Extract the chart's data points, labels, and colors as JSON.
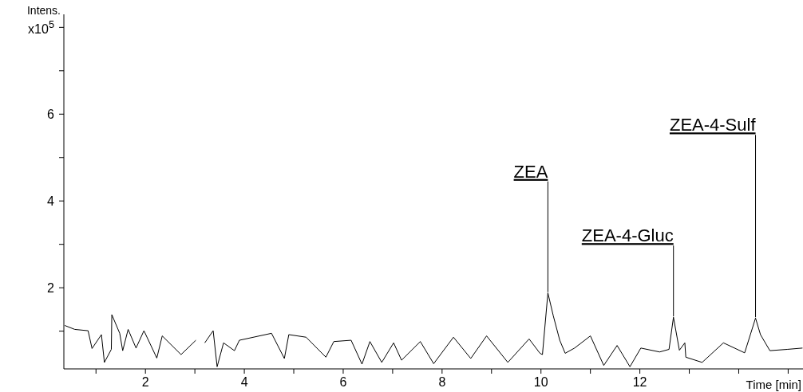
{
  "chart_data": {
    "type": "line",
    "xlabel": "Time [min]",
    "ylabel": "Intens. x10$^{5}$",
    "xlim": [
      0.35,
      15.3
    ],
    "ylim": [
      0.13,
      8.3
    ],
    "xticks": [
      {
        "value": 1,
        "label": null
      },
      2,
      {
        "value": 3,
        "label": null
      },
      4,
      {
        "value": 5,
        "label": null
      },
      6,
      {
        "value": 7,
        "label": null
      },
      8,
      {
        "value": 9,
        "label": null
      },
      10,
      {
        "value": 11,
        "label": null
      },
      12,
      {
        "value": 13,
        "label": null
      },
      {
        "value": 14,
        "label": null
      },
      {
        "value": 15,
        "label": null
      }
    ],
    "yticks": [
      {
        "value": 1,
        "label": null
      },
      2,
      {
        "value": 3,
        "label": null
      },
      4,
      {
        "value": 5,
        "label": null
      },
      6,
      {
        "value": 7,
        "label": null
      },
      {
        "value": 8,
        "label": null
      }
    ],
    "grid": false,
    "marker": "none",
    "line_style": "solid",
    "series": [
      {
        "color": "#000000",
        "x": [
          0.37,
          0.57,
          0.84,
          0.92,
          1.11,
          1.17,
          1.31,
          1.32,
          1.48,
          1.54,
          1.65,
          1.81,
          1.97,
          2.23,
          2.34,
          2.72,
          3.02,
          3.09,
          3.18,
          3.2,
          3.37,
          3.45,
          3.58,
          3.8,
          3.9,
          4.55,
          4.81,
          4.9,
          5.25,
          5.65,
          5.81,
          6.16,
          6.38,
          6.54,
          6.78,
          7.02,
          7.18,
          7.56,
          7.83,
          8.23,
          8.58,
          8.9,
          9.33,
          9.76,
          9.98,
          10.03,
          10.14,
          10.25,
          10.38,
          10.49,
          10.68,
          11.0,
          11.27,
          11.54,
          11.8,
          12.02,
          12.4,
          12.59,
          12.68,
          12.8,
          12.91,
          12.93,
          13.26,
          13.69,
          14.12,
          14.34,
          14.44,
          14.63,
          14.98,
          15.29
        ],
        "values": [
          1.13,
          1.04,
          1.01,
          0.6,
          0.92,
          0.28,
          0.58,
          1.38,
          0.95,
          0.55,
          1.04,
          0.61,
          1.01,
          0.38,
          0.89,
          0.46,
          0.79,
          null,
          null,
          0.73,
          1.01,
          0.18,
          0.73,
          0.55,
          0.79,
          0.95,
          0.37,
          0.92,
          0.86,
          0.4,
          0.76,
          0.79,
          0.24,
          0.76,
          0.28,
          0.73,
          0.33,
          0.76,
          0.25,
          0.86,
          0.37,
          0.89,
          0.28,
          0.82,
          0.49,
          0.46,
          1.88,
          1.35,
          0.79,
          0.49,
          0.61,
          0.89,
          0.21,
          0.67,
          0.18,
          0.61,
          0.52,
          0.58,
          1.32,
          0.56,
          0.73,
          0.4,
          0.28,
          0.73,
          0.5,
          1.3,
          0.92,
          0.55,
          0.58,
          0.61
        ]
      }
    ],
    "annotations": [
      {
        "text": "ZEA",
        "x": 10.14,
        "y": 1.88
      },
      {
        "text": "ZEA-4-Gluc",
        "x": 12.68,
        "y": 1.32
      },
      {
        "text": "ZEA-4-Sulf",
        "x": 14.34,
        "y": 1.3
      }
    ]
  }
}
